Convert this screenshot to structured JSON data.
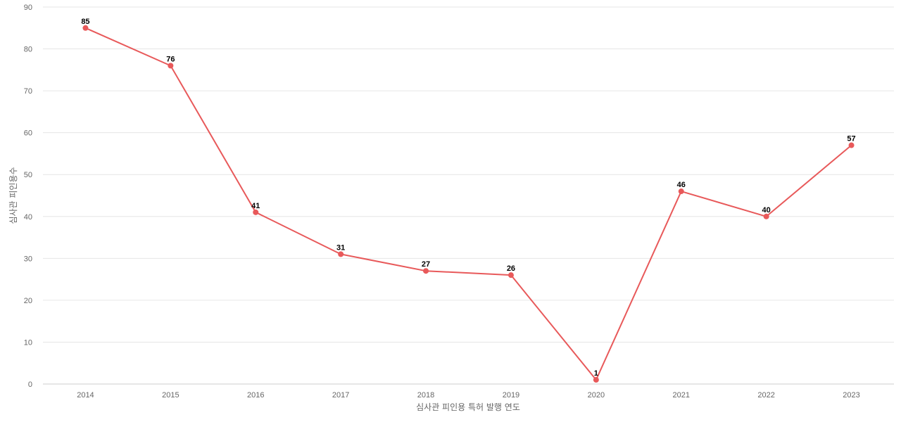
{
  "chart_data": {
    "type": "line",
    "title": "",
    "xlabel": "심사관 피인용 특허 발행 연도",
    "ylabel": "심사관 피인용수",
    "categories": [
      "2014",
      "2015",
      "2016",
      "2017",
      "2018",
      "2019",
      "2020",
      "2021",
      "2022",
      "2023"
    ],
    "series": [
      {
        "values": [
          85,
          76,
          41,
          31,
          27,
          26,
          1,
          46,
          40,
          57
        ],
        "color": "#e8595a"
      }
    ],
    "ylim": [
      0,
      90
    ],
    "yticks": [
      0,
      10,
      20,
      30,
      40,
      50,
      60,
      70,
      80,
      90
    ],
    "grid": true,
    "data_labels": true,
    "legend": "none"
  }
}
